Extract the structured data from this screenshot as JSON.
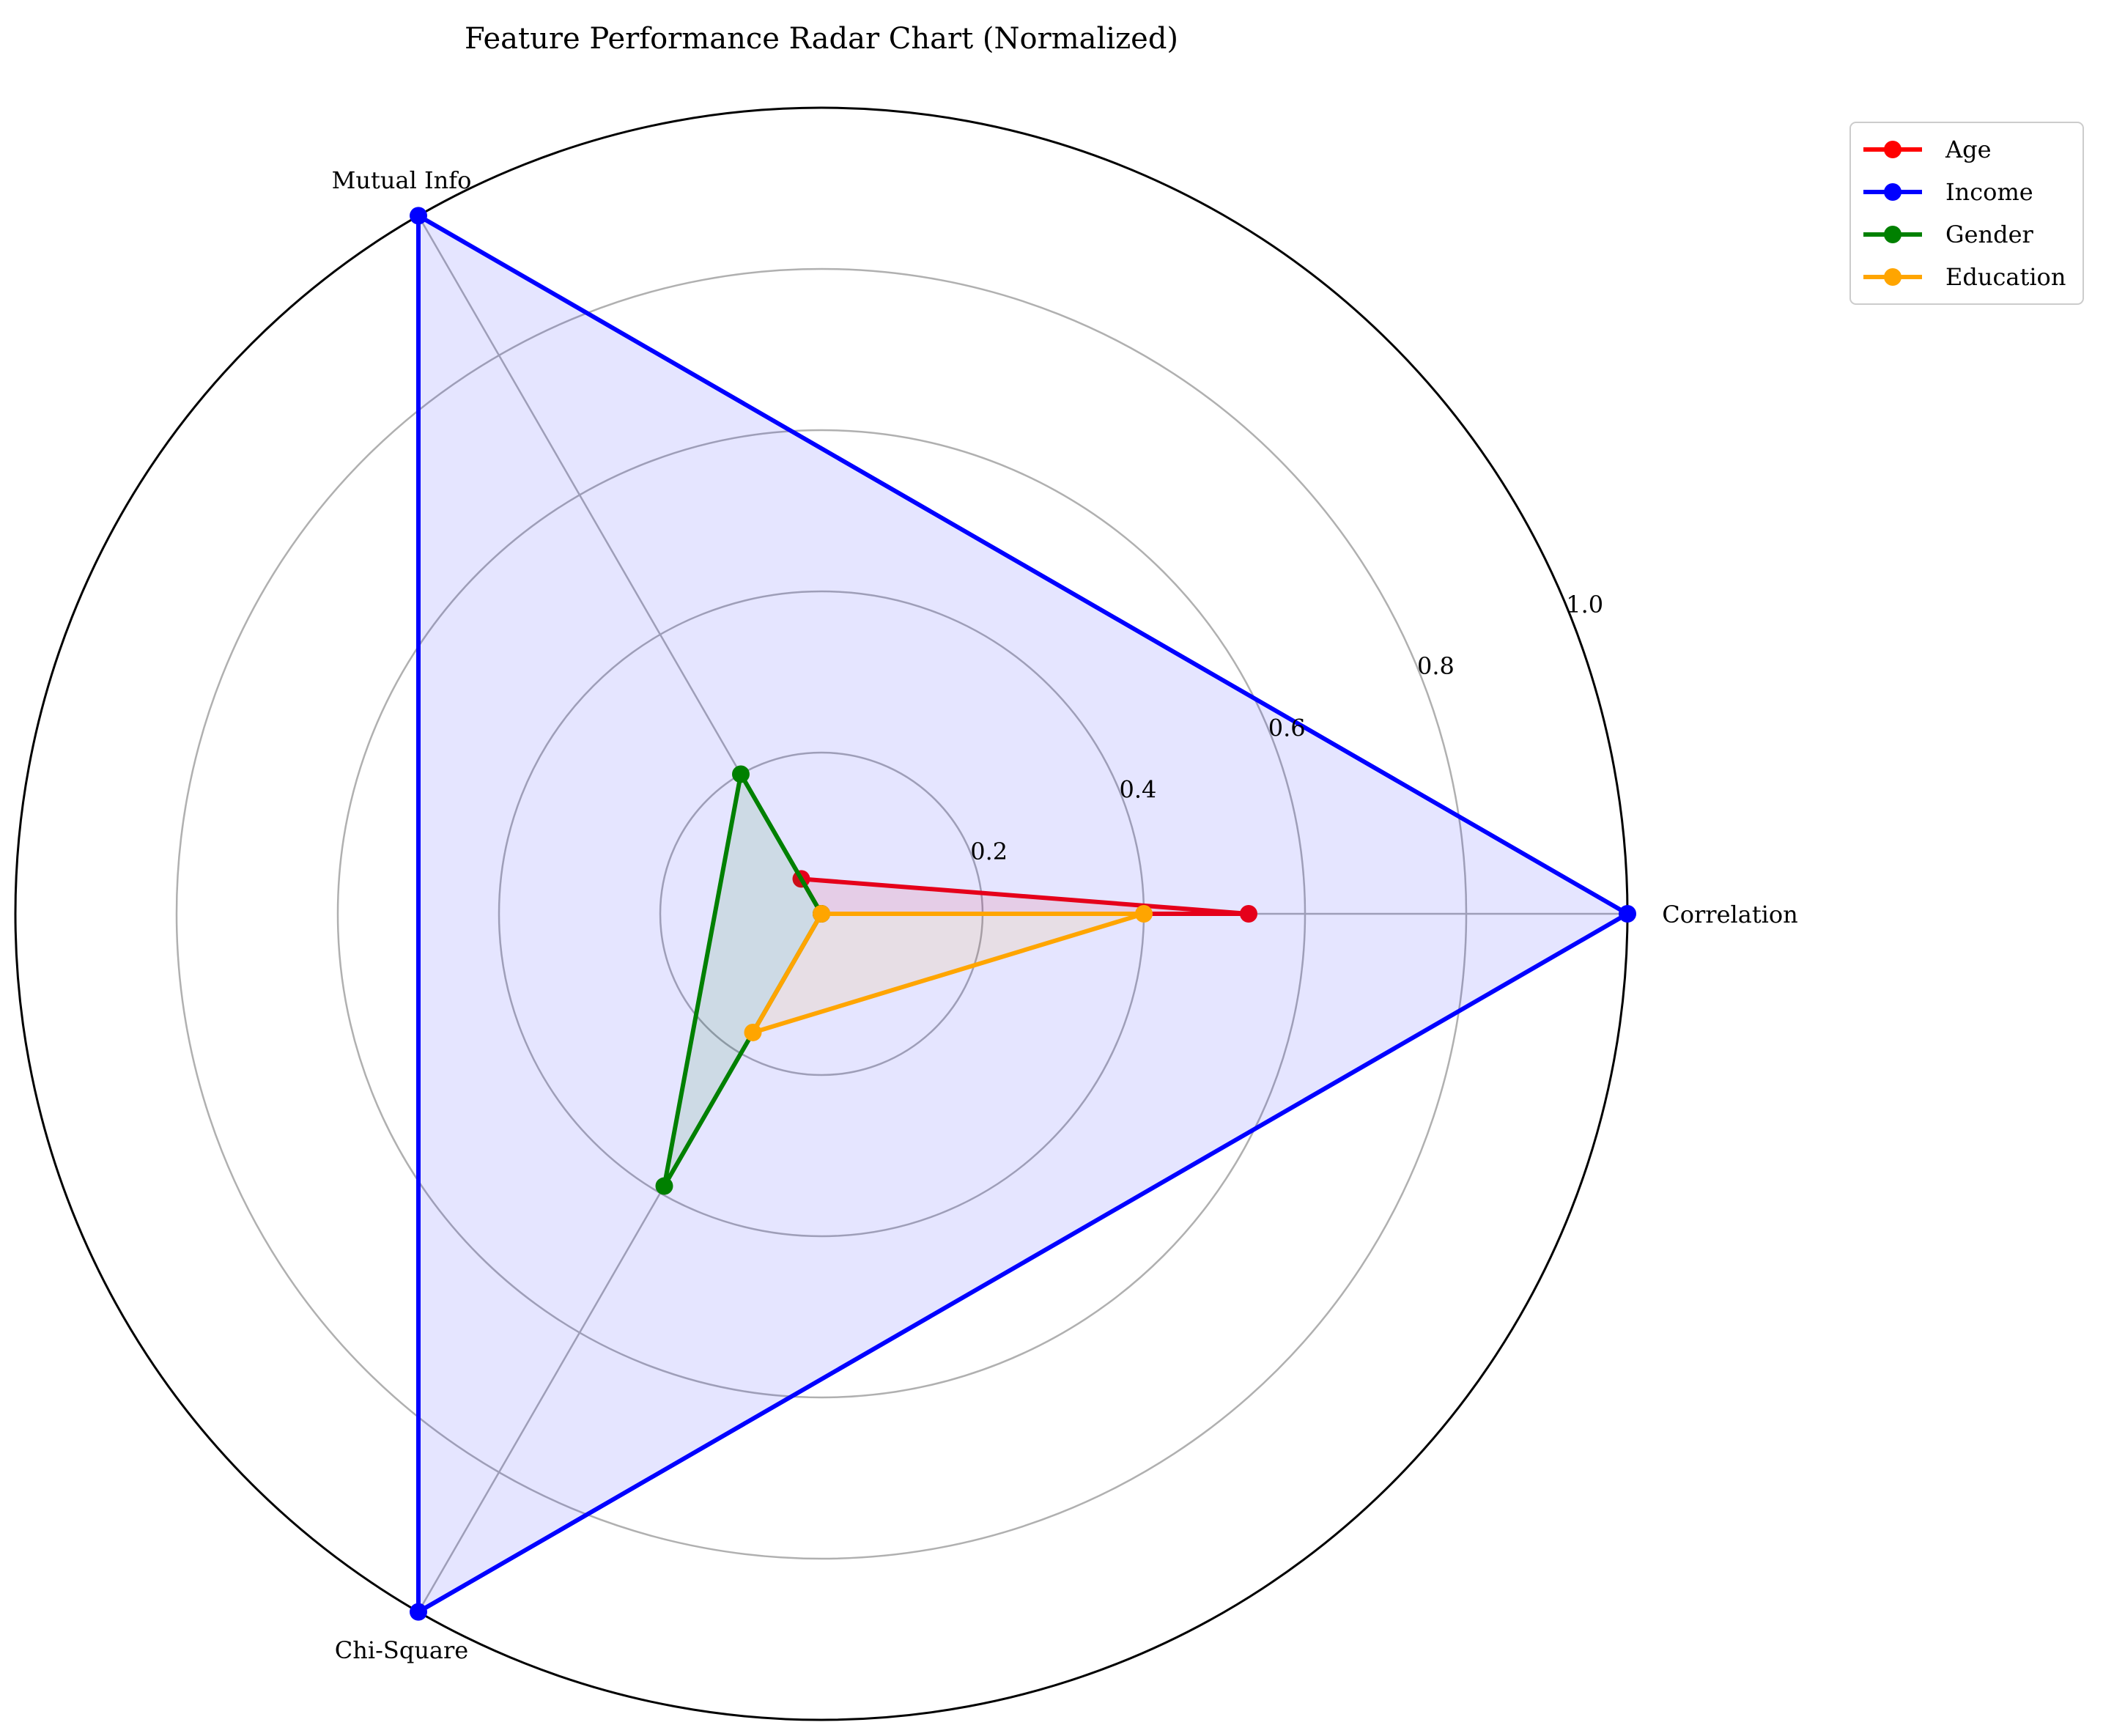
{
  "chart_data": {
    "type": "radar",
    "title": "Feature Performance Radar Chart (Normalized)",
    "axes": [
      "Correlation",
      "Mutual Info",
      "Chi-Square"
    ],
    "rlim": [
      0,
      1.0
    ],
    "rticks": [
      0.2,
      0.4,
      0.6,
      0.8,
      1.0
    ],
    "rtick_labels": [
      "0.2",
      "0.4",
      "0.6",
      "0.8",
      "1.0"
    ],
    "grid": true,
    "legend_position": "top-right",
    "series": [
      {
        "name": "Age",
        "color": "#ff0000",
        "values": [
          0.53,
          0.05,
          0.0
        ]
      },
      {
        "name": "Income",
        "color": "#0000ff",
        "values": [
          1.0,
          1.0,
          1.0
        ]
      },
      {
        "name": "Gender",
        "color": "#008000",
        "values": [
          0.0,
          0.2,
          0.39
        ]
      },
      {
        "name": "Education",
        "color": "#ffa500",
        "values": [
          0.4,
          0.0,
          0.17
        ]
      }
    ]
  }
}
